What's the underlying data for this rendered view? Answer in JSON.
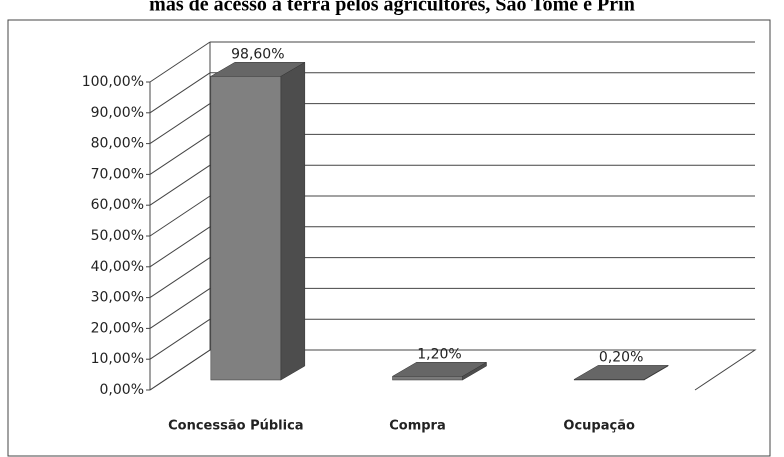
{
  "chart_data": {
    "type": "bar3d",
    "title": "mas de acesso à terra pelos agricultores, São Tomé e Prín",
    "categories": [
      "Concessão Pública",
      "Compra",
      "Ocupação"
    ],
    "values": [
      98.6,
      1.2,
      0.2
    ],
    "value_labels": [
      "98,60%",
      "1,20%",
      "0,20%"
    ],
    "colors": [
      "#808080",
      "#7a7a7a",
      "#a8a8a8"
    ],
    "ylim": [
      0,
      100
    ],
    "yticks": [
      {
        "value": 0,
        "label": "0,00%"
      },
      {
        "value": 10,
        "label": "10,00%"
      },
      {
        "value": 20,
        "label": "20,00%"
      },
      {
        "value": 30,
        "label": "30,00%"
      },
      {
        "value": 40,
        "label": "40,00%"
      },
      {
        "value": 50,
        "label": "50,00%"
      },
      {
        "value": 60,
        "label": "60,00%"
      },
      {
        "value": 70,
        "label": "70,00%"
      },
      {
        "value": 80,
        "label": "80,00%"
      },
      {
        "value": 90,
        "label": "90,00%"
      },
      {
        "value": 100,
        "label": "100,00%"
      }
    ],
    "grid": true
  }
}
